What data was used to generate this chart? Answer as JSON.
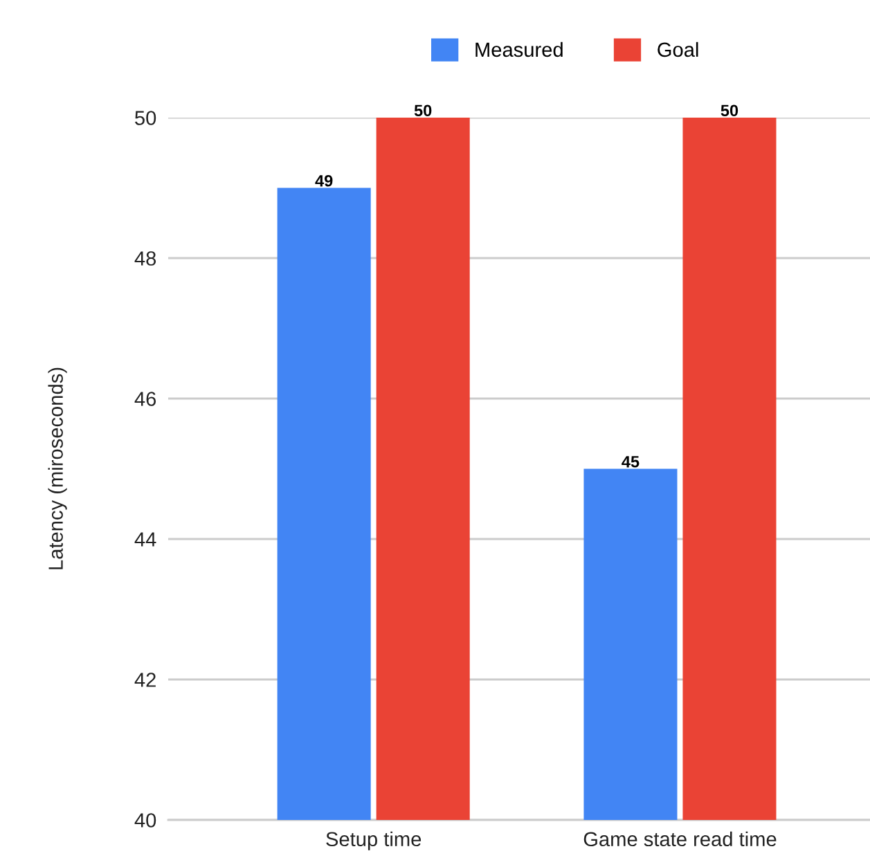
{
  "chart_data": {
    "type": "bar",
    "ylabel": "Latency (miroseconds)",
    "categories": [
      "Setup time",
      "Game state read time"
    ],
    "series": [
      {
        "name": "Measured",
        "color": "#4285f4",
        "values": [
          49,
          45
        ]
      },
      {
        "name": "Goal",
        "color": "#ea4335",
        "values": [
          50,
          50
        ]
      }
    ],
    "ylim": [
      40,
      50
    ],
    "yticks": [
      40,
      42,
      44,
      46,
      48,
      50
    ],
    "grid": "y",
    "legend": "top",
    "data_labels": true
  }
}
